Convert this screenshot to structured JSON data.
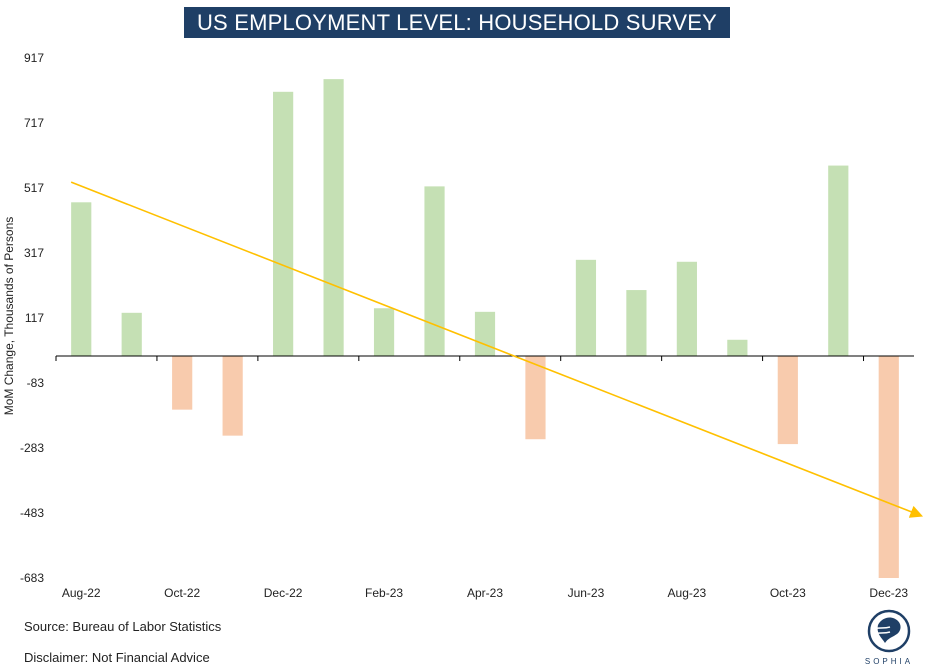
{
  "title": "US EMPLOYMENT LEVEL: HOUSEHOLD SURVEY",
  "footer": {
    "source": "Source: Bureau of Labor Statistics",
    "disclaimer": "Disclaimer: Not Financial Advice"
  },
  "logo": {
    "text": "SOPHIA",
    "icon": "sophia-head-logo"
  },
  "colors": {
    "positive": "#c5e0b4",
    "negative": "#f8cbad",
    "trend": "#ffc000",
    "title_bg": "#1f3f66"
  },
  "chart_data": {
    "type": "bar",
    "title": "US EMPLOYMENT LEVEL: HOUSEHOLD SURVEY",
    "xlabel": "",
    "ylabel": "MoM Change, Thousands of Persons",
    "ylim": [
      -683,
      917
    ],
    "yticks": [
      917,
      717,
      517,
      317,
      117,
      -83,
      -283,
      -483,
      -683
    ],
    "categories": [
      "Aug-22",
      "Sep-22",
      "Oct-22",
      "Nov-22",
      "Dec-22",
      "Jan-23",
      "Feb-23",
      "Mar-23",
      "Apr-23",
      "May-23",
      "Jun-23",
      "Jul-23",
      "Aug-23",
      "Sep-23",
      "Oct-23",
      "Nov-23",
      "Dec-23"
    ],
    "xtick_labels": [
      "Aug-22",
      "Oct-22",
      "Dec-22",
      "Feb-23",
      "Apr-23",
      "Jun-23",
      "Aug-23",
      "Oct-23",
      "Dec-23"
    ],
    "values": [
      473,
      133,
      -165,
      -245,
      813,
      852,
      147,
      522,
      136,
      -256,
      296,
      203,
      290,
      50,
      -271,
      586,
      -683
    ],
    "trendline": {
      "start": 535,
      "end": -490
    },
    "grid": false,
    "legend": "none"
  }
}
